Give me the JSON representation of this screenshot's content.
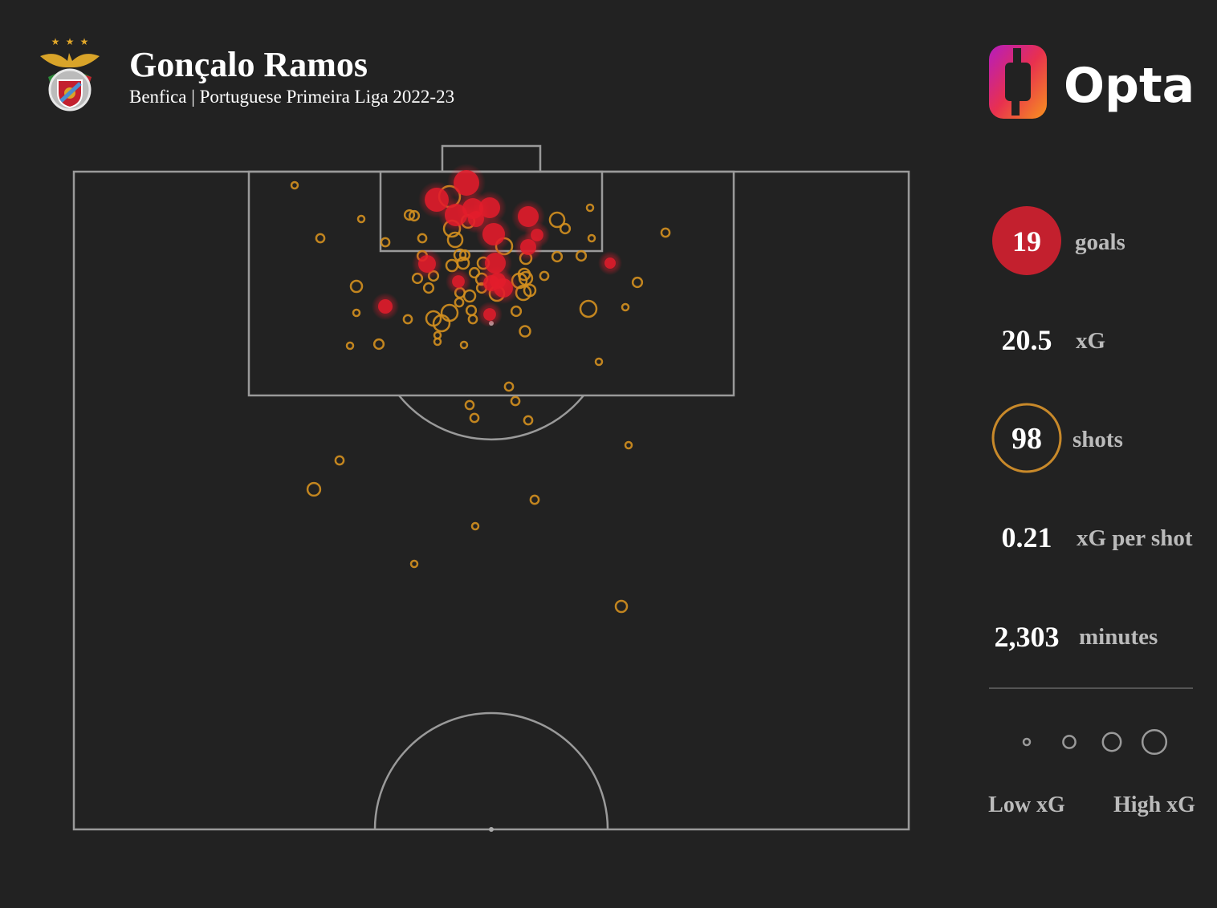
{
  "header": {
    "title": "Gonçalo Ramos",
    "subtitle": "Benfica | Portuguese Primeira Liga 2022-23",
    "brand": "Opta"
  },
  "stats": {
    "goals_value": "19",
    "goals_label": "goals",
    "xg_value": "20.5",
    "xg_label": "xG",
    "shots_value": "98",
    "shots_label": "shots",
    "xg_per_shot_value": "0.21",
    "xg_per_shot_label": "xG per shot",
    "minutes_value": "2,303",
    "minutes_label": "minutes"
  },
  "legend": {
    "low": "Low xG",
    "high": "High xG",
    "sample_xg": [
      0.02,
      0.2,
      0.4,
      0.8
    ]
  },
  "colors": {
    "background": "#222222",
    "goal": "#e31c2b",
    "shot": "#d4901f",
    "lines": "#9a9a9a",
    "goal_badge": "#c3202e"
  },
  "chart_data": {
    "type": "scatter",
    "title": "Gonçalo Ramos shot map",
    "pitch_units": {
      "width": 104,
      "half_length": 82
    },
    "axes": {
      "x": "pitch width (units, 0=left touchline)",
      "y": "distance from goal line (units)"
    },
    "goals": [
      [
        48.9,
        1.4,
        0.81
      ],
      [
        45.2,
        3.5,
        0.69
      ],
      [
        47.6,
        5.4,
        0.59
      ],
      [
        49.7,
        4.6,
        0.49
      ],
      [
        51.8,
        4.5,
        0.49
      ],
      [
        50.1,
        5.9,
        0.25
      ],
      [
        56.6,
        5.6,
        0.49
      ],
      [
        52.3,
        7.8,
        0.59
      ],
      [
        57.7,
        7.9,
        0.13
      ],
      [
        56.6,
        9.4,
        0.25
      ],
      [
        44.0,
        11.5,
        0.32
      ],
      [
        52.5,
        11.4,
        0.49
      ],
      [
        66.8,
        11.4,
        0.09
      ],
      [
        52.8,
        13.6,
        0.25
      ],
      [
        53.5,
        14.5,
        0.4
      ],
      [
        52.0,
        13.9,
        0.25
      ],
      [
        47.9,
        13.7,
        0.13
      ],
      [
        38.8,
        16.8,
        0.19
      ],
      [
        51.8,
        17.8,
        0.13
      ]
    ],
    "shots": [
      [
        27.5,
        1.7,
        0.01
      ],
      [
        35.8,
        5.9,
        0.01
      ],
      [
        30.7,
        8.3,
        0.03
      ],
      [
        73.7,
        7.6,
        0.03
      ],
      [
        64.3,
        4.5,
        0.01
      ],
      [
        64.5,
        8.3,
        0.01
      ],
      [
        35.2,
        14.3,
        0.09
      ],
      [
        35.2,
        17.6,
        0.01
      ],
      [
        34.4,
        21.7,
        0.01
      ],
      [
        38.0,
        21.5,
        0.05
      ],
      [
        70.2,
        13.8,
        0.05
      ],
      [
        68.7,
        16.9,
        0.01
      ],
      [
        65.4,
        23.7,
        0.01
      ],
      [
        54.2,
        26.8,
        0.03
      ],
      [
        55.0,
        28.6,
        0.03
      ],
      [
        49.3,
        29.1,
        0.03
      ],
      [
        49.9,
        30.7,
        0.03
      ],
      [
        56.6,
        31.0,
        0.03
      ],
      [
        69.1,
        34.1,
        0.01
      ],
      [
        33.1,
        36.0,
        0.03
      ],
      [
        29.9,
        39.6,
        0.13
      ],
      [
        57.4,
        40.9,
        0.03
      ],
      [
        50.0,
        44.2,
        0.01
      ],
      [
        42.4,
        48.9,
        0.01
      ],
      [
        68.2,
        54.2,
        0.09
      ],
      [
        56.2,
        19.9,
        0.07
      ],
      [
        48.6,
        21.6,
        0.01
      ],
      [
        45.3,
        20.4,
        0.01
      ],
      [
        41.6,
        18.4,
        0.03
      ],
      [
        64.1,
        17.1,
        0.25
      ],
      [
        38.8,
        8.8,
        0.03
      ],
      [
        41.8,
        5.4,
        0.05
      ],
      [
        42.4,
        5.5,
        0.05
      ],
      [
        43.4,
        8.3,
        0.03
      ],
      [
        46.8,
        3.1,
        0.49
      ],
      [
        47.1,
        7.1,
        0.25
      ],
      [
        47.5,
        8.5,
        0.19
      ],
      [
        49.1,
        6.2,
        0.13
      ],
      [
        60.2,
        6.0,
        0.19
      ],
      [
        61.2,
        7.1,
        0.05
      ],
      [
        53.6,
        9.3,
        0.25
      ],
      [
        56.3,
        10.8,
        0.09
      ],
      [
        60.2,
        10.6,
        0.05
      ],
      [
        63.2,
        10.5,
        0.05
      ],
      [
        43.4,
        10.5,
        0.05
      ],
      [
        42.8,
        13.3,
        0.05
      ],
      [
        44.8,
        13.0,
        0.05
      ],
      [
        44.2,
        14.5,
        0.05
      ],
      [
        47.1,
        11.7,
        0.09
      ],
      [
        48.1,
        10.4,
        0.09
      ],
      [
        48.7,
        10.4,
        0.05
      ],
      [
        48.5,
        11.4,
        0.09
      ],
      [
        49.9,
        12.6,
        0.05
      ],
      [
        51.0,
        11.4,
        0.09
      ],
      [
        50.8,
        13.4,
        0.09
      ],
      [
        50.8,
        14.5,
        0.05
      ],
      [
        52.7,
        15.2,
        0.19
      ],
      [
        55.5,
        13.6,
        0.19
      ],
      [
        56.3,
        13.3,
        0.13
      ],
      [
        56.1,
        12.8,
        0.09
      ],
      [
        56.8,
        14.8,
        0.09
      ],
      [
        56.0,
        15.1,
        0.19
      ],
      [
        58.6,
        13.0,
        0.03
      ],
      [
        48.1,
        15.1,
        0.05
      ],
      [
        49.3,
        15.5,
        0.09
      ],
      [
        48.0,
        16.3,
        0.03
      ],
      [
        49.5,
        17.3,
        0.05
      ],
      [
        49.7,
        18.4,
        0.03
      ],
      [
        46.8,
        17.6,
        0.25
      ],
      [
        44.8,
        18.3,
        0.19
      ],
      [
        45.8,
        18.9,
        0.25
      ],
      [
        55.1,
        17.4,
        0.05
      ],
      [
        45.3,
        21.2,
        0.01
      ]
    ]
  }
}
